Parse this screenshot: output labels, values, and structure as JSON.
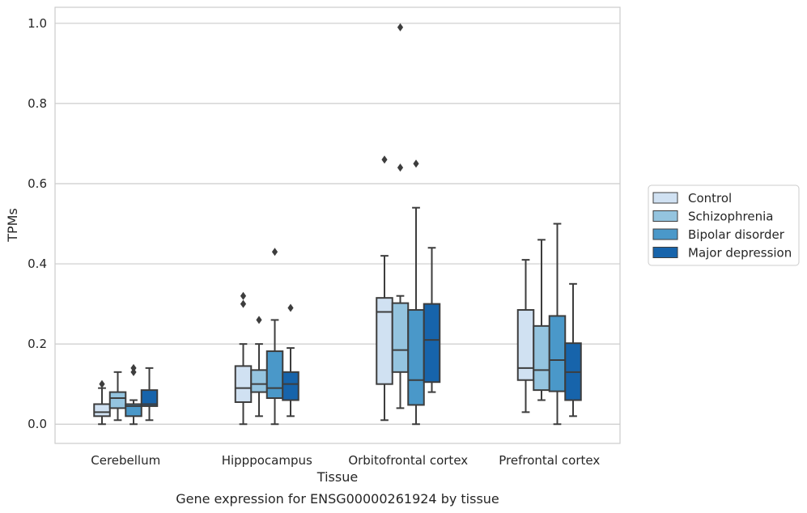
{
  "chart_data": {
    "type": "box",
    "caption": "Gene expression for ENSG00000261924 by tissue",
    "xlabel": "Tissue",
    "ylabel": "TPMs",
    "ylim": [
      -0.048,
      1.04
    ],
    "yticks": [
      0.0,
      0.2,
      0.4,
      0.6,
      0.8,
      1.0
    ],
    "ytick_labels": [
      "0.0",
      "0.2",
      "0.4",
      "0.6",
      "0.8",
      "1.0"
    ],
    "grid": "horizontal",
    "legend_position": "right",
    "categories": [
      "Cerebellum",
      "Hipppocampus",
      "Orbitofrontal cortex",
      "Prefrontal cortex"
    ],
    "series": [
      {
        "name": "Control",
        "color": "#d0e1f2",
        "boxes": [
          {
            "whisker_low": 0.0,
            "q1": 0.02,
            "median": 0.03,
            "q3": 0.05,
            "whisker_high": 0.09,
            "outliers": [
              0.1
            ]
          },
          {
            "whisker_low": 0.0,
            "q1": 0.055,
            "median": 0.09,
            "q3": 0.145,
            "whisker_high": 0.2,
            "outliers": [
              0.3,
              0.32
            ]
          },
          {
            "whisker_low": 0.01,
            "q1": 0.1,
            "median": 0.28,
            "q3": 0.315,
            "whisker_high": 0.42,
            "outliers": [
              0.66
            ]
          },
          {
            "whisker_low": 0.03,
            "q1": 0.11,
            "median": 0.14,
            "q3": 0.285,
            "whisker_high": 0.41,
            "outliers": []
          }
        ]
      },
      {
        "name": "Schizophrenia",
        "color": "#94c4df",
        "boxes": [
          {
            "whisker_low": 0.01,
            "q1": 0.04,
            "median": 0.065,
            "q3": 0.08,
            "whisker_high": 0.13,
            "outliers": []
          },
          {
            "whisker_low": 0.02,
            "q1": 0.08,
            "median": 0.1,
            "q3": 0.135,
            "whisker_high": 0.2,
            "outliers": [
              0.26
            ]
          },
          {
            "whisker_low": 0.04,
            "q1": 0.13,
            "median": 0.185,
            "q3": 0.302,
            "whisker_high": 0.32,
            "outliers": [
              0.64,
              0.99
            ]
          },
          {
            "whisker_low": 0.06,
            "q1": 0.085,
            "median": 0.135,
            "q3": 0.245,
            "whisker_high": 0.46,
            "outliers": []
          }
        ]
      },
      {
        "name": "Bipolar disorder",
        "color": "#4a98c9",
        "boxes": [
          {
            "whisker_low": 0.0,
            "q1": 0.02,
            "median": 0.045,
            "q3": 0.05,
            "whisker_high": 0.06,
            "outliers": [
              0.13,
              0.14
            ]
          },
          {
            "whisker_low": 0.0,
            "q1": 0.065,
            "median": 0.09,
            "q3": 0.182,
            "whisker_high": 0.26,
            "outliers": [
              0.43
            ]
          },
          {
            "whisker_low": 0.0,
            "q1": 0.048,
            "median": 0.11,
            "q3": 0.285,
            "whisker_high": 0.54,
            "outliers": [
              0.65
            ]
          },
          {
            "whisker_low": 0.0,
            "q1": 0.082,
            "median": 0.16,
            "q3": 0.27,
            "whisker_high": 0.5,
            "outliers": []
          }
        ]
      },
      {
        "name": "Major depression",
        "color": "#1764ab",
        "boxes": [
          {
            "whisker_low": 0.01,
            "q1": 0.045,
            "median": 0.05,
            "q3": 0.085,
            "whisker_high": 0.14,
            "outliers": []
          },
          {
            "whisker_low": 0.02,
            "q1": 0.06,
            "median": 0.1,
            "q3": 0.13,
            "whisker_high": 0.19,
            "outliers": [
              0.29
            ]
          },
          {
            "whisker_low": 0.08,
            "q1": 0.105,
            "median": 0.21,
            "q3": 0.3,
            "whisker_high": 0.44,
            "outliers": []
          },
          {
            "whisker_low": 0.02,
            "q1": 0.06,
            "median": 0.13,
            "q3": 0.202,
            "whisker_high": 0.35,
            "outliers": []
          }
        ]
      }
    ]
  }
}
